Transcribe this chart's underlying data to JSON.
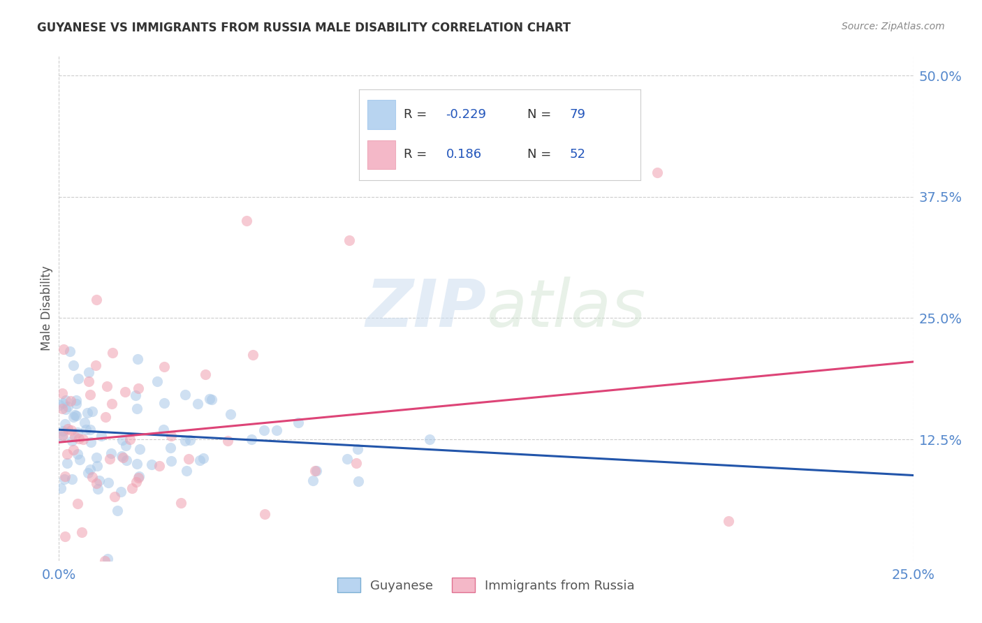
{
  "title": "GUYANESE VS IMMIGRANTS FROM RUSSIA MALE DISABILITY CORRELATION CHART",
  "source": "Source: ZipAtlas.com",
  "ylabel_label": "Male Disability",
  "watermark_zip": "ZIP",
  "watermark_atlas": "atlas",
  "legend_labels": [
    "Guyanese",
    "Immigrants from Russia"
  ],
  "guyanese_color": "#a8c8e8",
  "russia_color": "#f0a0b0",
  "guyanese_edge": "#7bafd4",
  "russia_edge": "#e07090",
  "trend_guyanese_color": "#2255aa",
  "trend_russia_color": "#dd4477",
  "xlim": [
    0.0,
    0.25
  ],
  "ylim": [
    0.0,
    0.52
  ],
  "yticks": [
    0.125,
    0.25,
    0.375,
    0.5
  ],
  "ytick_labels": [
    "12.5%",
    "25.0%",
    "37.5%",
    "50.0%"
  ],
  "xticks": [
    0.0,
    0.25
  ],
  "xtick_labels": [
    "0.0%",
    "25.0%"
  ],
  "legend_R1": "-0.229",
  "legend_N1": "79",
  "legend_R2": "0.186",
  "legend_N2": "52",
  "legend_color1": "#b8d4f0",
  "legend_color2": "#f4b8c8",
  "title_color": "#333333",
  "source_color": "#888888",
  "tick_color": "#5588cc",
  "grid_color": "#cccccc",
  "ylabel_color": "#555555",
  "marker_size": 120,
  "marker_alpha": 0.55,
  "trend_lw": 2.2,
  "blue_trend_start_y": 0.135,
  "blue_trend_end_y": 0.088,
  "pink_trend_start_y": 0.122,
  "pink_trend_end_y": 0.205
}
